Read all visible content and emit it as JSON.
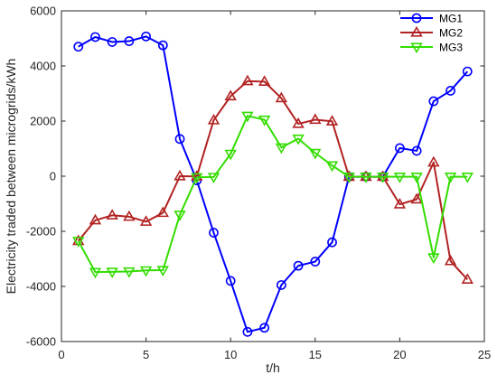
{
  "chart_data": {
    "type": "line",
    "title": "",
    "xlabel": "t/h",
    "ylabel": "Electricity traded between microgrids/kWh",
    "xlim": [
      0,
      25
    ],
    "ylim": [
      -6000,
      6000
    ],
    "xticks": [
      0,
      5,
      10,
      15,
      20,
      25
    ],
    "yticks": [
      -6000,
      -4000,
      -2000,
      0,
      2000,
      4000,
      6000
    ],
    "grid": false,
    "legend_position": "top-right",
    "x": [
      1,
      2,
      3,
      4,
      5,
      6,
      7,
      8,
      9,
      10,
      11,
      12,
      13,
      14,
      15,
      16,
      17,
      18,
      19,
      20,
      21,
      22,
      23,
      24
    ],
    "series": [
      {
        "name": "MG1",
        "color": "#0000ff",
        "marker": "circle",
        "values": [
          4700,
          5050,
          4870,
          4900,
          5070,
          4750,
          1350,
          -150,
          -2050,
          -3800,
          -5650,
          -5500,
          -3950,
          -3250,
          -3100,
          -2400,
          -20,
          -20,
          -20,
          1020,
          920,
          2720,
          3100,
          3800
        ]
      },
      {
        "name": "MG2",
        "color": "#b22222",
        "marker": "triangle-up",
        "values": [
          -2350,
          -1600,
          -1420,
          -1470,
          -1650,
          -1330,
          0,
          -10,
          2030,
          2900,
          3450,
          3430,
          2830,
          1900,
          2050,
          1990,
          -20,
          -20,
          -20,
          -1020,
          -840,
          500,
          -3080,
          -3750
        ]
      },
      {
        "name": "MG3",
        "color": "#33dd00",
        "marker": "triangle-down",
        "values": [
          -2350,
          -3480,
          -3470,
          -3460,
          -3420,
          -3410,
          -1400,
          -40,
          -30,
          810,
          2190,
          2050,
          1040,
          1360,
          840,
          390,
          -20,
          -20,
          -20,
          -20,
          -20,
          -2950,
          -20,
          -20
        ]
      }
    ]
  }
}
